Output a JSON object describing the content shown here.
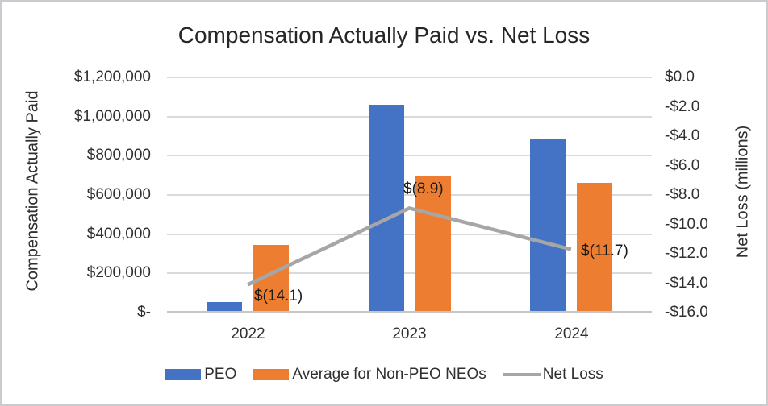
{
  "chart_data": {
    "type": "combo-bar-line",
    "title": "Compensation Actually Paid vs. Net Loss",
    "categories": [
      "2022",
      "2023",
      "2024"
    ],
    "bar_series": [
      {
        "name": "PEO",
        "color": "#4472C4",
        "values": [
          45000,
          1050000,
          875000
        ]
      },
      {
        "name": "Average for Non-PEO NEOs",
        "color": "#ED7D31",
        "values": [
          335000,
          690000,
          655000
        ]
      }
    ],
    "line_series": {
      "name": "Net Loss",
      "color": "#A6A6A6",
      "values": [
        -14.1,
        -8.9,
        -11.7
      ],
      "point_labels": [
        "$(14.1)",
        "$(8.9)",
        "$(11.7)"
      ]
    },
    "left_axis": {
      "title": "Compensation Actually Paid",
      "min": 0,
      "max": 1200000,
      "tick_labels": [
        "$1,200,000",
        "$1,000,000",
        "$800,000",
        "$600,000",
        "$400,000",
        "$200,000",
        "$-"
      ]
    },
    "right_axis": {
      "title": "Net Loss (millions)",
      "min": -16,
      "max": 0,
      "tick_labels": [
        "$0.0",
        "-$2.0",
        "-$4.0",
        "-$6.0",
        "-$8.0",
        "-$10.0",
        "-$12.0",
        "-$14.0",
        "-$16.0"
      ]
    },
    "x_axis": {
      "labels": [
        "2022",
        "2023",
        "2024"
      ]
    },
    "legend": [
      {
        "label": "PEO",
        "color": "#4472C4",
        "marker": "bar"
      },
      {
        "label": "Average for Non-PEO NEOs",
        "color": "#ED7D31",
        "marker": "bar"
      },
      {
        "label": "Net Loss",
        "color": "#A6A6A6",
        "marker": "line"
      }
    ],
    "style_colors": {
      "gridline": "#DADADA",
      "axis_line": "#C6C6C6",
      "text": "#303030"
    },
    "grid": "horizontal",
    "legend_position": "bottom"
  }
}
